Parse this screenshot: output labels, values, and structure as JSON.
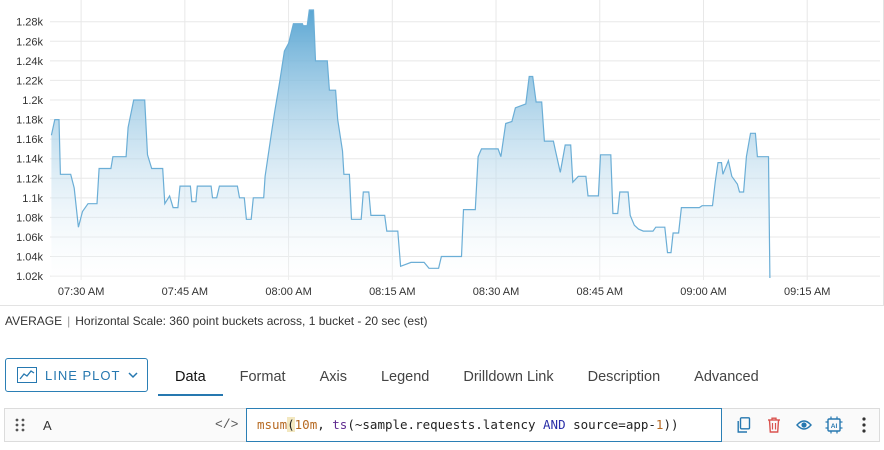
{
  "chart_data": {
    "type": "line",
    "style": "area-gradient",
    "color": "#6baed6",
    "y_ticks": [
      "1.02k",
      "1.04k",
      "1.06k",
      "1.08k",
      "1.1k",
      "1.12k",
      "1.14k",
      "1.16k",
      "1.18k",
      "1.2k",
      "1.22k",
      "1.24k",
      "1.26k",
      "1.28k"
    ],
    "ylim": [
      1016,
      1292
    ],
    "x_ticks": [
      "07:30 AM",
      "07:45 AM",
      "08:00 AM",
      "08:15 AM",
      "08:30 AM",
      "08:45 AM",
      "09:00 AM",
      "09:15 AM"
    ],
    "x_tick_minutes": [
      450,
      465,
      480,
      495,
      510,
      525,
      540,
      555
    ],
    "xlim": [
      445.5,
      563.5
    ],
    "grid": true,
    "points": [
      [
        445.7,
        1164
      ],
      [
        446.2,
        1180
      ],
      [
        446.8,
        1180
      ],
      [
        447.0,
        1124
      ],
      [
        448.5,
        1124
      ],
      [
        449.0,
        1110
      ],
      [
        449.6,
        1070
      ],
      [
        450.2,
        1086
      ],
      [
        451.0,
        1094
      ],
      [
        452.3,
        1094
      ],
      [
        452.6,
        1130
      ],
      [
        454.3,
        1130
      ],
      [
        454.6,
        1142
      ],
      [
        456.5,
        1142
      ],
      [
        456.8,
        1172
      ],
      [
        457.6,
        1200
      ],
      [
        459.2,
        1200
      ],
      [
        459.6,
        1144
      ],
      [
        460.2,
        1130
      ],
      [
        461.8,
        1130
      ],
      [
        462.1,
        1094
      ],
      [
        462.8,
        1102
      ],
      [
        463.3,
        1090
      ],
      [
        464.0,
        1090
      ],
      [
        464.3,
        1112
      ],
      [
        465.8,
        1112
      ],
      [
        466.0,
        1096
      ],
      [
        466.6,
        1096
      ],
      [
        466.8,
        1112
      ],
      [
        468.8,
        1112
      ],
      [
        469.0,
        1100
      ],
      [
        469.6,
        1100
      ],
      [
        470.0,
        1112
      ],
      [
        472.6,
        1112
      ],
      [
        472.9,
        1100
      ],
      [
        473.6,
        1100
      ],
      [
        473.9,
        1078
      ],
      [
        474.6,
        1078
      ],
      [
        474.9,
        1100
      ],
      [
        476.4,
        1100
      ],
      [
        476.6,
        1122
      ],
      [
        477.6,
        1170
      ],
      [
        478.0,
        1188
      ],
      [
        478.7,
        1218
      ],
      [
        479.4,
        1250
      ],
      [
        480.0,
        1258
      ],
      [
        480.7,
        1278
      ],
      [
        482.0,
        1278
      ],
      [
        482.1,
        1276
      ],
      [
        482.7,
        1276
      ],
      [
        483.0,
        1292
      ],
      [
        483.6,
        1292
      ],
      [
        483.9,
        1240
      ],
      [
        485.6,
        1240
      ],
      [
        485.9,
        1210
      ],
      [
        486.8,
        1210
      ],
      [
        487.1,
        1180
      ],
      [
        487.8,
        1148
      ],
      [
        488.0,
        1124
      ],
      [
        488.8,
        1124
      ],
      [
        489.1,
        1078
      ],
      [
        490.5,
        1078
      ],
      [
        490.8,
        1106
      ],
      [
        491.6,
        1106
      ],
      [
        491.9,
        1082
      ],
      [
        493.9,
        1082
      ],
      [
        494.2,
        1066
      ],
      [
        495.8,
        1066
      ],
      [
        496.2,
        1030
      ],
      [
        497.7,
        1034
      ],
      [
        499.6,
        1034
      ],
      [
        500.3,
        1028
      ],
      [
        501.7,
        1028
      ],
      [
        502.1,
        1040
      ],
      [
        505.0,
        1040
      ],
      [
        505.3,
        1088
      ],
      [
        507.0,
        1088
      ],
      [
        507.4,
        1142
      ],
      [
        507.9,
        1150
      ],
      [
        510.3,
        1150
      ],
      [
        510.7,
        1142
      ],
      [
        511.4,
        1176
      ],
      [
        512.3,
        1178
      ],
      [
        512.8,
        1192
      ],
      [
        514.3,
        1196
      ],
      [
        514.8,
        1224
      ],
      [
        515.3,
        1224
      ],
      [
        515.8,
        1198
      ],
      [
        516.6,
        1198
      ],
      [
        517.0,
        1158
      ],
      [
        518.3,
        1158
      ],
      [
        518.6,
        1148
      ],
      [
        519.3,
        1126
      ],
      [
        520.0,
        1154
      ],
      [
        520.8,
        1154
      ],
      [
        521.1,
        1116
      ],
      [
        521.9,
        1122
      ],
      [
        523.0,
        1122
      ],
      [
        523.3,
        1102
      ],
      [
        524.8,
        1102
      ],
      [
        525.1,
        1144
      ],
      [
        526.6,
        1144
      ],
      [
        526.9,
        1084
      ],
      [
        527.6,
        1084
      ],
      [
        527.9,
        1106
      ],
      [
        529.1,
        1106
      ],
      [
        529.4,
        1082
      ],
      [
        530.0,
        1072
      ],
      [
        530.6,
        1068
      ],
      [
        531.3,
        1066
      ],
      [
        532.7,
        1066
      ],
      [
        533.1,
        1070
      ],
      [
        534.4,
        1070
      ],
      [
        534.8,
        1044
      ],
      [
        535.3,
        1044
      ],
      [
        535.6,
        1064
      ],
      [
        536.4,
        1064
      ],
      [
        536.8,
        1090
      ],
      [
        539.4,
        1090
      ],
      [
        539.8,
        1092
      ],
      [
        541.3,
        1092
      ],
      [
        541.7,
        1116
      ],
      [
        542.1,
        1136
      ],
      [
        542.6,
        1136
      ],
      [
        542.8,
        1124
      ],
      [
        543.6,
        1138
      ],
      [
        544.1,
        1122
      ],
      [
        544.9,
        1114
      ],
      [
        545.2,
        1106
      ],
      [
        545.8,
        1106
      ],
      [
        546.2,
        1142
      ],
      [
        546.8,
        1166
      ],
      [
        547.5,
        1166
      ],
      [
        547.8,
        1142
      ],
      [
        549.4,
        1142
      ],
      [
        549.6,
        1018
      ]
    ]
  },
  "footer": {
    "aggregation": "AVERAGE",
    "separator": "|",
    "scale_text": "Horizontal Scale: 360 point buckets across, 1 bucket - 20 sec (est)"
  },
  "toolbar": {
    "plot_type_label": "LINE PLOT",
    "tabs": [
      "Data",
      "Format",
      "Axis",
      "Legend",
      "Drilldown Link",
      "Description",
      "Advanced"
    ],
    "active_tab": "Data"
  },
  "query": {
    "name": "A",
    "code_toggle": "</>",
    "parts": {
      "fn1": "msum",
      "open1": "(",
      "num": "10m",
      "comma": ", ",
      "fn2": "ts",
      "open2": "(",
      "arg1": "~sample.requests.latency ",
      "kw": "AND",
      "arg2": " source=app-",
      "num2": "1",
      "close": "))"
    },
    "icons": [
      "copy-icon",
      "delete-icon",
      "visibility-icon",
      "ai-icon",
      "more-icon"
    ]
  }
}
